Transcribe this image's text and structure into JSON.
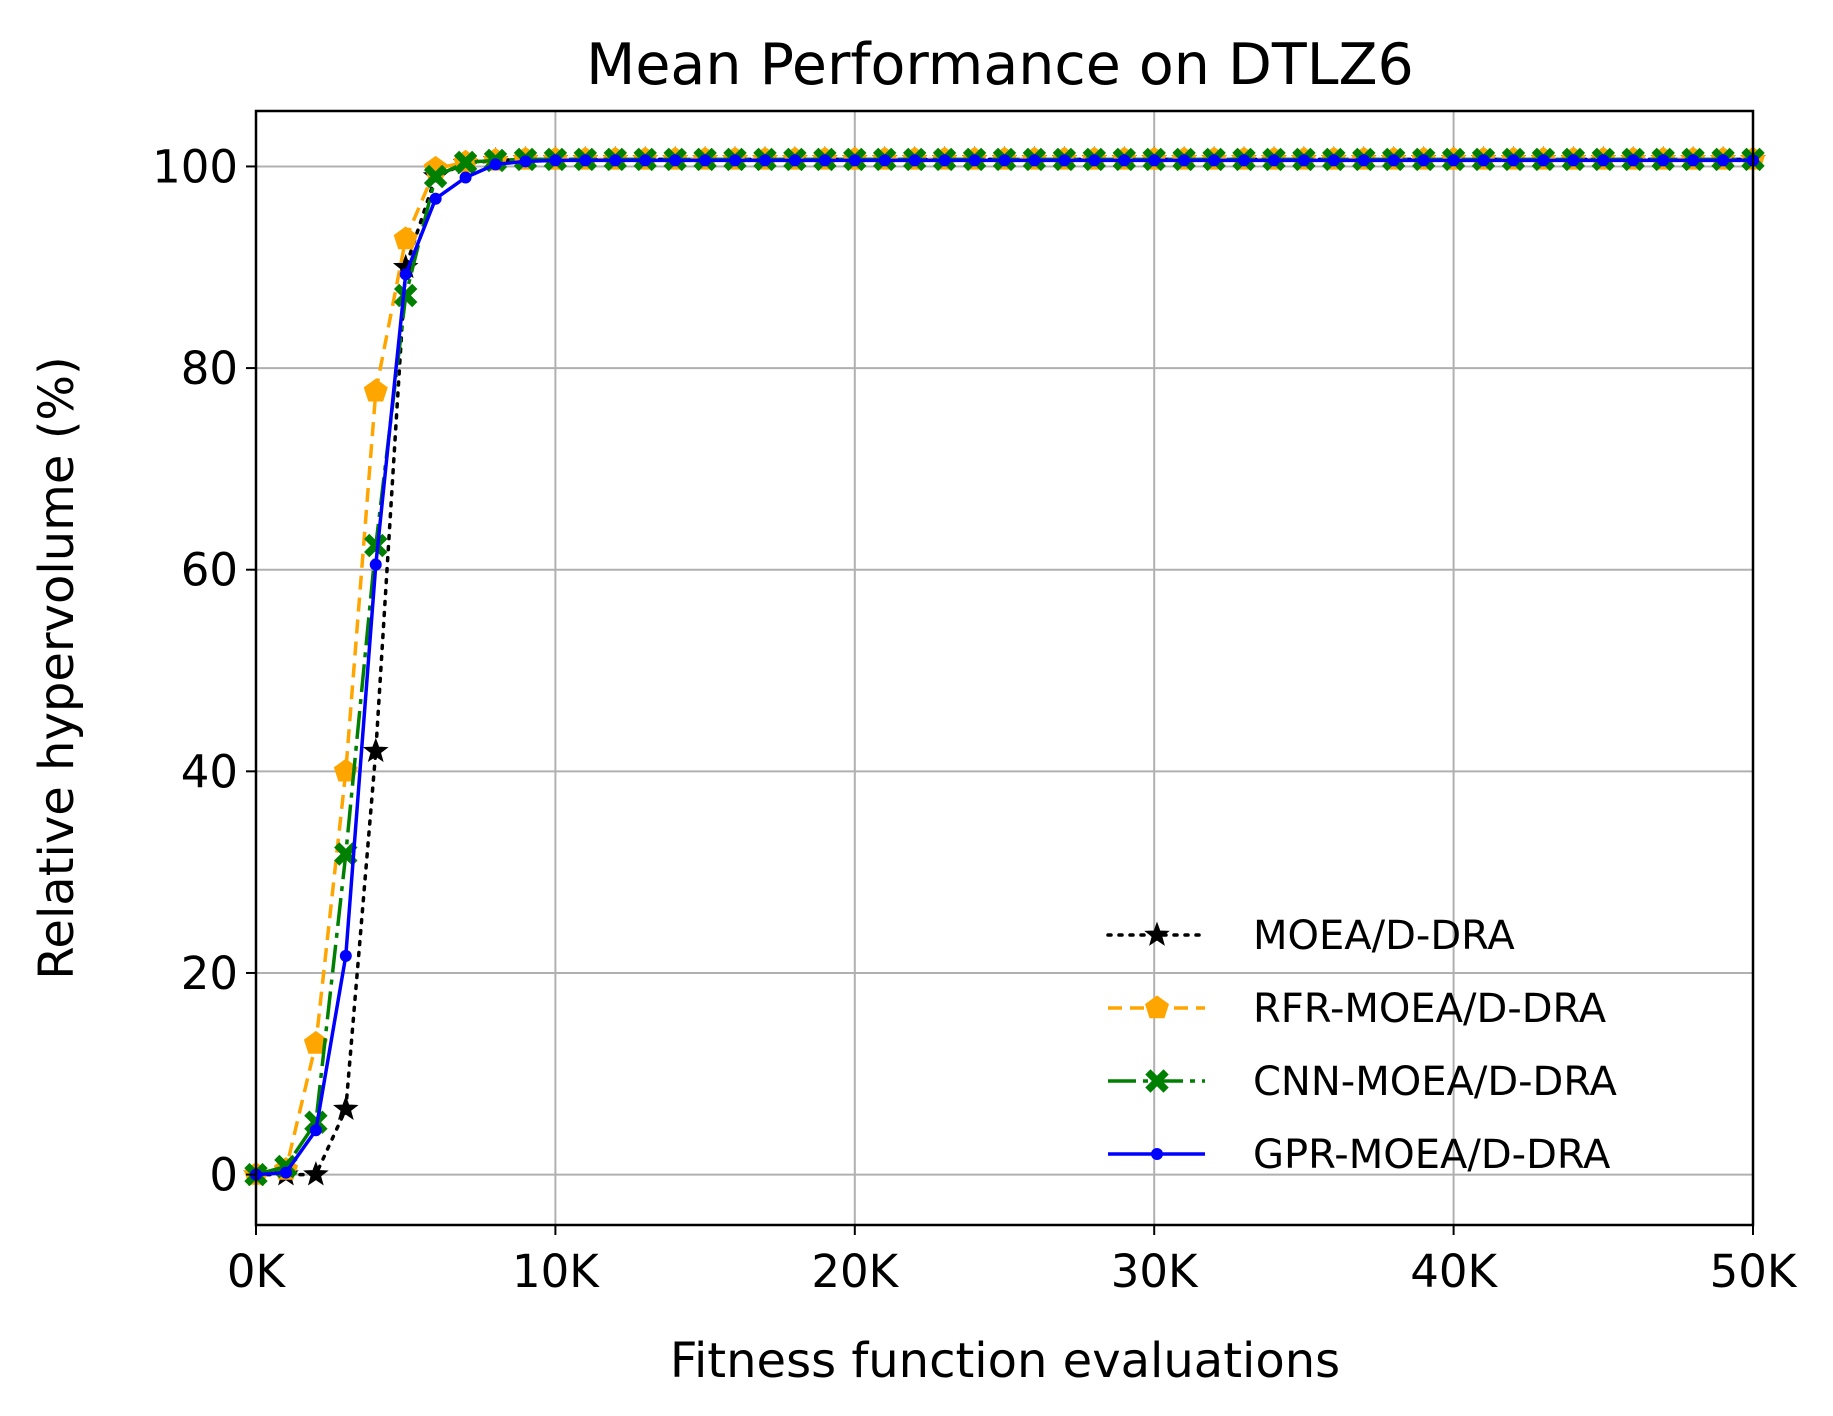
{
  "chart_data": {
    "type": "line",
    "title": "Mean Performance on DTLZ6",
    "xlabel": "Fitness function evaluations",
    "ylabel": "Relative hypervolume (%)",
    "xlim": [
      0,
      50000
    ],
    "ylim": [
      -5,
      105.5
    ],
    "x_ticks": [
      {
        "value": 0,
        "label": "0K"
      },
      {
        "value": 10000,
        "label": "10K"
      },
      {
        "value": 20000,
        "label": "20K"
      },
      {
        "value": 30000,
        "label": "30K"
      },
      {
        "value": 40000,
        "label": "40K"
      },
      {
        "value": 50000,
        "label": "50K"
      }
    ],
    "y_ticks": [
      {
        "value": 0,
        "label": "0"
      },
      {
        "value": 20,
        "label": "20"
      },
      {
        "value": 40,
        "label": "40"
      },
      {
        "value": 60,
        "label": "60"
      },
      {
        "value": 80,
        "label": "80"
      },
      {
        "value": 100,
        "label": "100"
      }
    ],
    "grid": true,
    "legend_position": "lower-right",
    "x_step": 1000,
    "series": [
      {
        "name": "MOEA/D-DRA",
        "color": "#000000",
        "line_style": "dotted",
        "marker": "star",
        "values": [
          0,
          0,
          0,
          6.5,
          42,
          90,
          99,
          100.3,
          100.6,
          100.7,
          100.7
        ]
      },
      {
        "name": "RFR-MOEA/D-DRA",
        "color": "#ffa500",
        "line_style": "dashed",
        "marker": "pentagon",
        "values": [
          0,
          0.5,
          13,
          40,
          77.7,
          92.8,
          99.8,
          100.4,
          100.6,
          100.7,
          100.7
        ]
      },
      {
        "name": "CNN-MOEA/D-DRA",
        "color": "#008000",
        "line_style": "dashdot",
        "marker": "x",
        "values": [
          0,
          0.8,
          5.2,
          31.8,
          62.4,
          87.2,
          99,
          100.4,
          100.6,
          100.7,
          100.7
        ]
      },
      {
        "name": "GPR-MOEA/D-DRA",
        "color": "#0000ff",
        "line_style": "solid",
        "marker": "dot",
        "values": [
          0,
          0.2,
          4.4,
          21.7,
          60.5,
          89.3,
          96.8,
          98.9,
          100.2,
          100.5,
          100.6
        ]
      }
    ]
  }
}
